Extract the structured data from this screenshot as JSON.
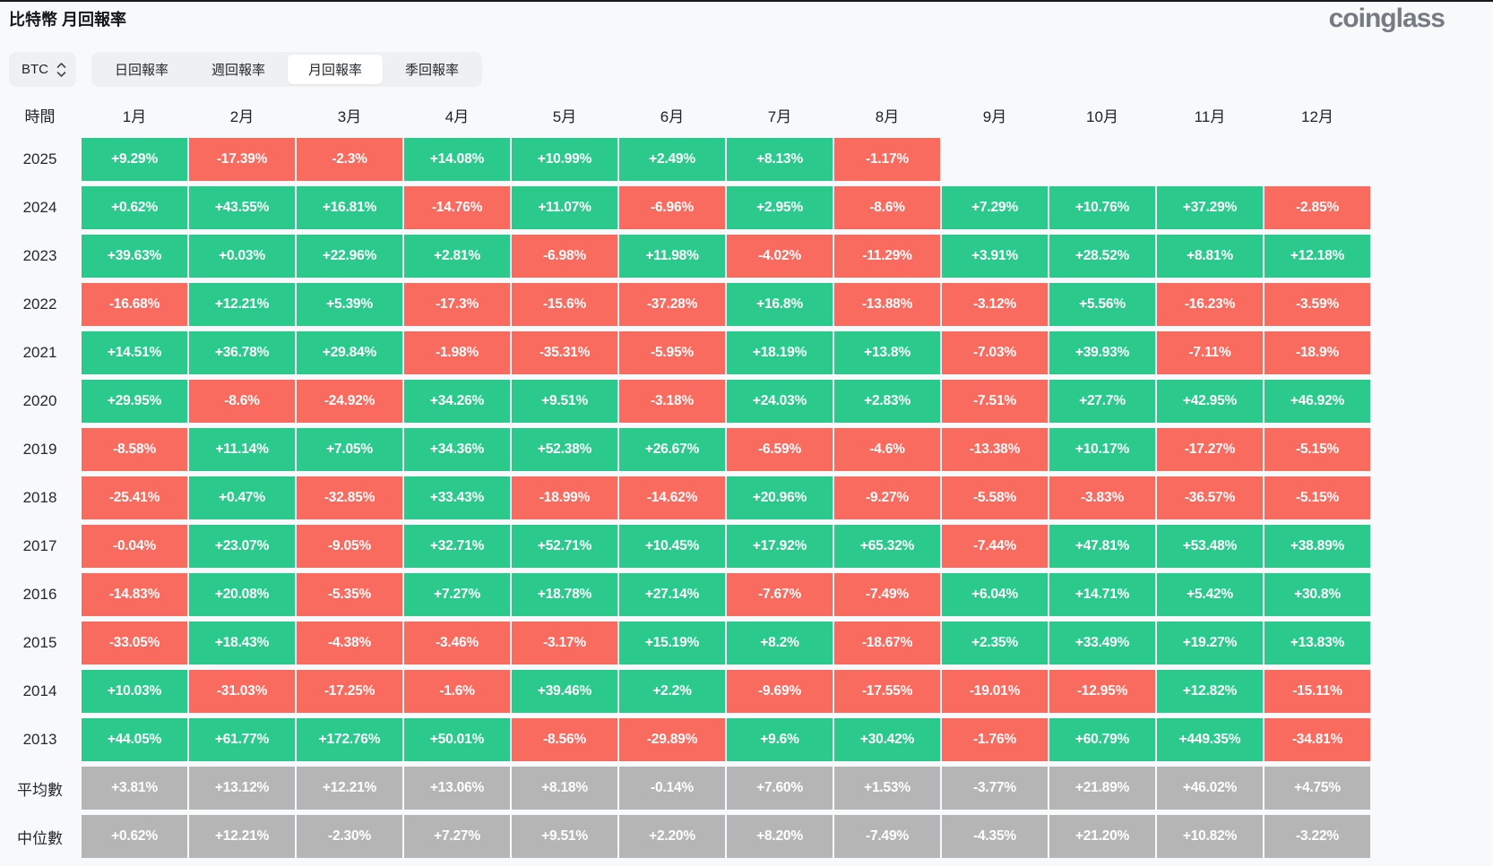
{
  "header": {
    "title": "比特幣 月回報率",
    "logo": "coinglass"
  },
  "controls": {
    "coin_selector": {
      "value": "BTC"
    },
    "tabs": [
      {
        "label": "日回報率",
        "active": false
      },
      {
        "label": "週回報率",
        "active": false
      },
      {
        "label": "月回報率",
        "active": true
      },
      {
        "label": "季回報率",
        "active": false
      }
    ]
  },
  "chart_data": {
    "type": "heatmap",
    "title": "比特幣 月回報率",
    "columns": [
      "時間",
      "1月",
      "2月",
      "3月",
      "4月",
      "5月",
      "6月",
      "7月",
      "8月",
      "9月",
      "10月",
      "11月",
      "12月"
    ],
    "colors": {
      "positive": "#2cc98c",
      "negative": "#f96a5f",
      "summary": "#b5b5b5"
    },
    "rows": [
      {
        "label": "2025",
        "summary": false,
        "values": [
          "+9.29%",
          "-17.39%",
          "-2.3%",
          "+14.08%",
          "+10.99%",
          "+2.49%",
          "+8.13%",
          "-1.17%",
          "",
          "",
          "",
          ""
        ]
      },
      {
        "label": "2024",
        "summary": false,
        "values": [
          "+0.62%",
          "+43.55%",
          "+16.81%",
          "-14.76%",
          "+11.07%",
          "-6.96%",
          "+2.95%",
          "-8.6%",
          "+7.29%",
          "+10.76%",
          "+37.29%",
          "-2.85%"
        ]
      },
      {
        "label": "2023",
        "summary": false,
        "values": [
          "+39.63%",
          "+0.03%",
          "+22.96%",
          "+2.81%",
          "-6.98%",
          "+11.98%",
          "-4.02%",
          "-11.29%",
          "+3.91%",
          "+28.52%",
          "+8.81%",
          "+12.18%"
        ]
      },
      {
        "label": "2022",
        "summary": false,
        "values": [
          "-16.68%",
          "+12.21%",
          "+5.39%",
          "-17.3%",
          "-15.6%",
          "-37.28%",
          "+16.8%",
          "-13.88%",
          "-3.12%",
          "+5.56%",
          "-16.23%",
          "-3.59%"
        ]
      },
      {
        "label": "2021",
        "summary": false,
        "values": [
          "+14.51%",
          "+36.78%",
          "+29.84%",
          "-1.98%",
          "-35.31%",
          "-5.95%",
          "+18.19%",
          "+13.8%",
          "-7.03%",
          "+39.93%",
          "-7.11%",
          "-18.9%"
        ]
      },
      {
        "label": "2020",
        "summary": false,
        "values": [
          "+29.95%",
          "-8.6%",
          "-24.92%",
          "+34.26%",
          "+9.51%",
          "-3.18%",
          "+24.03%",
          "+2.83%",
          "-7.51%",
          "+27.7%",
          "+42.95%",
          "+46.92%"
        ]
      },
      {
        "label": "2019",
        "summary": false,
        "values": [
          "-8.58%",
          "+11.14%",
          "+7.05%",
          "+34.36%",
          "+52.38%",
          "+26.67%",
          "-6.59%",
          "-4.6%",
          "-13.38%",
          "+10.17%",
          "-17.27%",
          "-5.15%"
        ]
      },
      {
        "label": "2018",
        "summary": false,
        "values": [
          "-25.41%",
          "+0.47%",
          "-32.85%",
          "+33.43%",
          "-18.99%",
          "-14.62%",
          "+20.96%",
          "-9.27%",
          "-5.58%",
          "-3.83%",
          "-36.57%",
          "-5.15%"
        ]
      },
      {
        "label": "2017",
        "summary": false,
        "values": [
          "-0.04%",
          "+23.07%",
          "-9.05%",
          "+32.71%",
          "+52.71%",
          "+10.45%",
          "+17.92%",
          "+65.32%",
          "-7.44%",
          "+47.81%",
          "+53.48%",
          "+38.89%"
        ]
      },
      {
        "label": "2016",
        "summary": false,
        "values": [
          "-14.83%",
          "+20.08%",
          "-5.35%",
          "+7.27%",
          "+18.78%",
          "+27.14%",
          "-7.67%",
          "-7.49%",
          "+6.04%",
          "+14.71%",
          "+5.42%",
          "+30.8%"
        ]
      },
      {
        "label": "2015",
        "summary": false,
        "values": [
          "-33.05%",
          "+18.43%",
          "-4.38%",
          "-3.46%",
          "-3.17%",
          "+15.19%",
          "+8.2%",
          "-18.67%",
          "+2.35%",
          "+33.49%",
          "+19.27%",
          "+13.83%"
        ]
      },
      {
        "label": "2014",
        "summary": false,
        "values": [
          "+10.03%",
          "-31.03%",
          "-17.25%",
          "-1.6%",
          "+39.46%",
          "+2.2%",
          "-9.69%",
          "-17.55%",
          "-19.01%",
          "-12.95%",
          "+12.82%",
          "-15.11%"
        ]
      },
      {
        "label": "2013",
        "summary": false,
        "values": [
          "+44.05%",
          "+61.77%",
          "+172.76%",
          "+50.01%",
          "-8.56%",
          "-29.89%",
          "+9.6%",
          "+30.42%",
          "-1.76%",
          "+60.79%",
          "+449.35%",
          "-34.81%"
        ]
      },
      {
        "label": "平均數",
        "summary": true,
        "values": [
          "+3.81%",
          "+13.12%",
          "+12.21%",
          "+13.06%",
          "+8.18%",
          "-0.14%",
          "+7.60%",
          "+1.53%",
          "-3.77%",
          "+21.89%",
          "+46.02%",
          "+4.75%"
        ]
      },
      {
        "label": "中位數",
        "summary": true,
        "values": [
          "+0.62%",
          "+12.21%",
          "-2.30%",
          "+7.27%",
          "+9.51%",
          "+2.20%",
          "+8.20%",
          "-7.49%",
          "-4.35%",
          "+21.20%",
          "+10.82%",
          "-3.22%"
        ]
      }
    ]
  }
}
